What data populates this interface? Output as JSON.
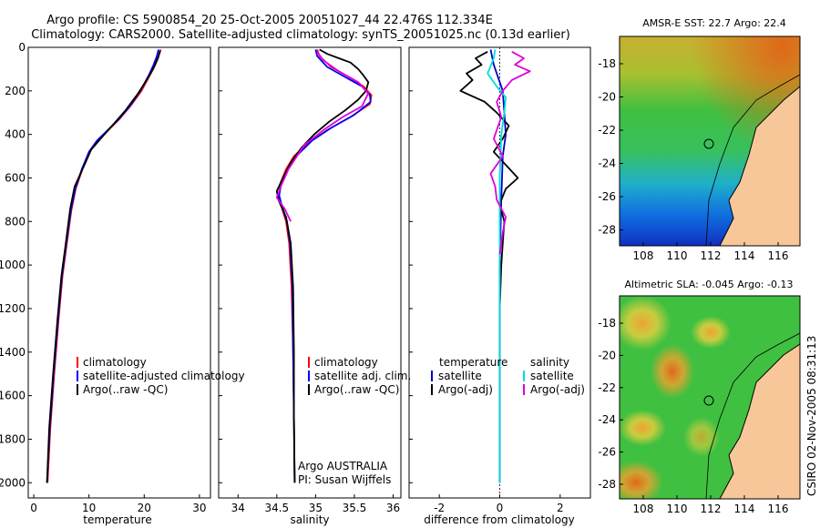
{
  "title": {
    "line1": "Argo profile: CS 5900854_20 25-Oct-2005 20051027_44 22.476S 112.334E",
    "line2": "Climatology: CARS2000. Satellite-adjusted climatology: synTS_20051025.nc (0.13d earlier)"
  },
  "chart_data": [
    {
      "id": "temperature",
      "type": "line",
      "xlabel": "temperature",
      "ylabel": "",
      "xlim": [
        -1,
        32
      ],
      "ylim": [
        2070,
        0
      ],
      "xticks": [
        0,
        10,
        20,
        30
      ],
      "yticks": [
        0,
        200,
        400,
        600,
        800,
        1000,
        1200,
        1400,
        1600,
        1800,
        2000
      ],
      "legend": {
        "position": "lower-right",
        "entries": [
          "climatology",
          "satellite-adjusted climatology",
          "Argo(..raw -QC)"
        ]
      },
      "series": [
        {
          "name": "climatology",
          "color": "#ff0000",
          "points": [
            [
              23.0,
              10
            ],
            [
              22.6,
              40
            ],
            [
              22.0,
              80
            ],
            [
              21.0,
              130
            ],
            [
              19.5,
              200
            ],
            [
              17.5,
              270
            ],
            [
              15.5,
              330
            ],
            [
              13.5,
              380
            ],
            [
              11.5,
              430
            ],
            [
              10.0,
              480
            ],
            [
              8.8,
              560
            ],
            [
              7.6,
              650
            ],
            [
              6.8,
              750
            ],
            [
              6.0,
              900
            ],
            [
              5.2,
              1050
            ],
            [
              4.5,
              1250
            ],
            [
              3.7,
              1500
            ],
            [
              3.0,
              1750
            ],
            [
              2.5,
              2000
            ]
          ]
        },
        {
          "name": "satellite-adjusted climatology",
          "color": "#0000ff",
          "points": [
            [
              22.6,
              10
            ],
            [
              22.3,
              40
            ],
            [
              21.7,
              80
            ],
            [
              20.8,
              130
            ],
            [
              19.3,
              200
            ],
            [
              17.4,
              270
            ],
            [
              15.4,
              330
            ],
            [
              13.4,
              380
            ],
            [
              11.4,
              430
            ],
            [
              10.0,
              480
            ],
            [
              8.7,
              560
            ],
            [
              7.5,
              650
            ],
            [
              6.7,
              750
            ],
            [
              5.9,
              900
            ],
            [
              5.1,
              1050
            ],
            [
              4.4,
              1250
            ],
            [
              3.6,
              1500
            ],
            [
              2.9,
              1750
            ],
            [
              2.4,
              2000
            ]
          ]
        },
        {
          "name": "Argo(..raw -QC)",
          "color": "#000000",
          "points": [
            [
              22.9,
              15
            ],
            [
              22.5,
              50
            ],
            [
              21.6,
              100
            ],
            [
              20.2,
              160
            ],
            [
              18.8,
              215
            ],
            [
              16.6,
              290
            ],
            [
              14.2,
              360
            ],
            [
              12.1,
              420
            ],
            [
              10.4,
              470
            ],
            [
              9.0,
              550
            ],
            [
              7.4,
              640
            ],
            [
              6.6,
              740
            ],
            [
              5.8,
              900
            ],
            [
              5.0,
              1050
            ],
            [
              4.3,
              1250
            ],
            [
              3.5,
              1500
            ],
            [
              2.8,
              1750
            ],
            [
              2.4,
              2000
            ]
          ]
        }
      ]
    },
    {
      "id": "salinity",
      "type": "line",
      "xlabel": "salinity",
      "ylabel": "",
      "xlim": [
        33.75,
        36.1
      ],
      "ylim": [
        2070,
        0
      ],
      "xticks": [
        34,
        34.5,
        35,
        35.5,
        36
      ],
      "yticks": [
        0,
        200,
        400,
        600,
        800,
        1000,
        1200,
        1400,
        1600,
        1800,
        2000
      ],
      "legend": {
        "position": "lower-right",
        "entries": [
          "climatology",
          "satellite adj. clim.",
          "Argo(..raw -QC)"
        ]
      },
      "annotations": [
        "Argo AUSTRALIA",
        "PI: Susan Wijffels"
      ],
      "series": [
        {
          "name": "climatology",
          "color": "#ff0000",
          "points": [
            [
              35.02,
              10
            ],
            [
              35.05,
              40
            ],
            [
              35.2,
              90
            ],
            [
              35.45,
              140
            ],
            [
              35.62,
              180
            ],
            [
              35.72,
              220
            ],
            [
              35.7,
              260
            ],
            [
              35.45,
              320
            ],
            [
              35.15,
              380
            ],
            [
              34.9,
              440
            ],
            [
              34.72,
              500
            ],
            [
              34.62,
              560
            ],
            [
              34.55,
              620
            ],
            [
              34.52,
              680
            ],
            [
              34.55,
              720
            ],
            [
              34.62,
              800
            ],
            [
              34.66,
              900
            ],
            [
              34.69,
              1100
            ],
            [
              34.71,
              1400
            ],
            [
              34.72,
              1700
            ],
            [
              34.73,
              2000
            ]
          ]
        },
        {
          "name": "satellite adj. clim.",
          "color": "#0000ff",
          "points": [
            [
              35.0,
              10
            ],
            [
              35.02,
              40
            ],
            [
              35.15,
              90
            ],
            [
              35.4,
              140
            ],
            [
              35.6,
              180
            ],
            [
              35.7,
              220
            ],
            [
              35.71,
              250
            ],
            [
              35.5,
              310
            ],
            [
              35.2,
              370
            ],
            [
              34.95,
              430
            ],
            [
              34.75,
              500
            ],
            [
              34.64,
              560
            ],
            [
              34.56,
              620
            ],
            [
              34.53,
              680
            ],
            [
              34.56,
              720
            ],
            [
              34.63,
              800
            ],
            [
              34.67,
              900
            ],
            [
              34.7,
              1100
            ],
            [
              34.71,
              1400
            ],
            [
              34.72,
              1700
            ],
            [
              34.73,
              2000
            ]
          ]
        },
        {
          "name": "Argo(..raw -QC)",
          "color": "#000000",
          "points": [
            [
              35.05,
              10
            ],
            [
              35.15,
              30
            ],
            [
              35.3,
              50
            ],
            [
              35.45,
              70
            ],
            [
              35.55,
              100
            ],
            [
              35.62,
              130
            ],
            [
              35.68,
              160
            ],
            [
              35.65,
              200
            ],
            [
              35.55,
              240
            ],
            [
              35.38,
              290
            ],
            [
              35.18,
              340
            ],
            [
              34.98,
              400
            ],
            [
              34.82,
              460
            ],
            [
              34.68,
              530
            ],
            [
              34.58,
              600
            ],
            [
              34.5,
              660
            ],
            [
              34.52,
              700
            ],
            [
              34.62,
              780
            ],
            [
              34.68,
              900
            ],
            [
              34.71,
              1100
            ],
            [
              34.72,
              1400
            ],
            [
              34.72,
              1700
            ],
            [
              34.73,
              2000
            ]
          ]
        },
        {
          "name": "Argo salinity (magenta trace)",
          "color": "#dd00dd",
          "points": [
            [
              35.02,
              20
            ],
            [
              35.1,
              60
            ],
            [
              35.3,
              110
            ],
            [
              35.55,
              160
            ],
            [
              35.68,
              210
            ],
            [
              35.6,
              270
            ],
            [
              35.35,
              320
            ],
            [
              35.1,
              380
            ],
            [
              34.85,
              450
            ],
            [
              34.65,
              560
            ],
            [
              34.55,
              640
            ],
            [
              34.5,
              690
            ],
            [
              34.6,
              740
            ],
            [
              34.68,
              800
            ]
          ]
        }
      ]
    },
    {
      "id": "difference",
      "type": "line",
      "xlabel": "difference from climatology",
      "ylabel": "",
      "xlim": [
        -3,
        3
      ],
      "ylim": [
        2070,
        0
      ],
      "xticks": [
        -2,
        0,
        2
      ],
      "yticks": [
        0,
        200,
        400,
        600,
        800,
        1000,
        1200,
        1400,
        1600,
        1800,
        2000
      ],
      "legend": {
        "position": "lower-center",
        "header_left": "temperature",
        "header_right": "salinity",
        "entries_left": [
          "satellite",
          "Argo(-adj)"
        ],
        "entries_right": [
          "satellite",
          "Argo(-adj)"
        ]
      },
      "series": [
        {
          "name": "temperature satellite",
          "color": "#0000cc",
          "points": [
            [
              -0.3,
              10
            ],
            [
              -0.2,
              80
            ],
            [
              0.1,
              200
            ],
            [
              0.15,
              300
            ],
            [
              0.2,
              400
            ],
            [
              0.1,
              500
            ],
            [
              0.05,
              700
            ],
            [
              0.0,
              1000
            ],
            [
              0.0,
              1500
            ],
            [
              0.0,
              2000
            ]
          ]
        },
        {
          "name": "temperature Argo(-adj)",
          "color": "#000000",
          "points": [
            [
              -0.4,
              20
            ],
            [
              -0.8,
              50
            ],
            [
              -0.6,
              80
            ],
            [
              -1.1,
              120
            ],
            [
              -0.9,
              150
            ],
            [
              -1.3,
              200
            ],
            [
              -0.5,
              250
            ],
            [
              -0.1,
              300
            ],
            [
              0.3,
              360
            ],
            [
              0.1,
              420
            ],
            [
              -0.2,
              480
            ],
            [
              0.2,
              540
            ],
            [
              0.6,
              600
            ],
            [
              0.2,
              650
            ],
            [
              0.0,
              720
            ],
            [
              0.15,
              800
            ],
            [
              0.1,
              900
            ],
            [
              0.05,
              1000
            ],
            [
              0.0,
              1200
            ],
            [
              0.0,
              2000
            ]
          ]
        },
        {
          "name": "salinity satellite",
          "color": "#00dddd",
          "points": [
            [
              -0.15,
              10
            ],
            [
              -0.2,
              50
            ],
            [
              -0.4,
              120
            ],
            [
              -0.1,
              180
            ],
            [
              0.2,
              230
            ],
            [
              0.15,
              300
            ],
            [
              0.05,
              400
            ],
            [
              0.0,
              600
            ],
            [
              0.0,
              1000
            ],
            [
              0.0,
              2000
            ]
          ]
        },
        {
          "name": "salinity Argo(-adj)",
          "color": "#dd00dd",
          "points": [
            [
              0.4,
              20
            ],
            [
              0.8,
              50
            ],
            [
              0.5,
              80
            ],
            [
              1.0,
              110
            ],
            [
              0.4,
              150
            ],
            [
              0.1,
              200
            ],
            [
              -0.1,
              250
            ],
            [
              0.05,
              320
            ],
            [
              -0.2,
              420
            ],
            [
              0.1,
              500
            ],
            [
              -0.3,
              580
            ],
            [
              -0.15,
              640
            ],
            [
              -0.1,
              700
            ],
            [
              0.2,
              780
            ],
            [
              0.1,
              850
            ],
            [
              0.0,
              950
            ]
          ]
        }
      ]
    }
  ],
  "maps": [
    {
      "id": "sst-map",
      "title": "AMSR-E SST: 22.7 Argo: 22.4",
      "xticks": [
        "108",
        "110",
        "112",
        "114",
        "116"
      ],
      "yticks": [
        "-18",
        "-20",
        "-22",
        "-24",
        "-26",
        "-28"
      ],
      "profile_lon": 112.334,
      "profile_lat": -22.476,
      "colors": {
        "warm": "#e07020",
        "mid": "#40c040",
        "cool": "#2080e0",
        "cold": "#1030c0",
        "land": "#f7c79a"
      }
    },
    {
      "id": "sla-map",
      "title": "Altimetric SLA: -0.045 Argo: -0.13",
      "xticks": [
        "108",
        "110",
        "112",
        "114",
        "116"
      ],
      "yticks": [
        "-18",
        "-20",
        "-22",
        "-24",
        "-26",
        "-28"
      ],
      "profile_lon": 112.334,
      "profile_lat": -22.476,
      "colors": {
        "high": "#f0c030",
        "mid": "#40c040",
        "low": "#e07020",
        "land": "#f7c79a"
      }
    }
  ],
  "side_label": "CSIRO 02-Nov-2005 08:31:13"
}
